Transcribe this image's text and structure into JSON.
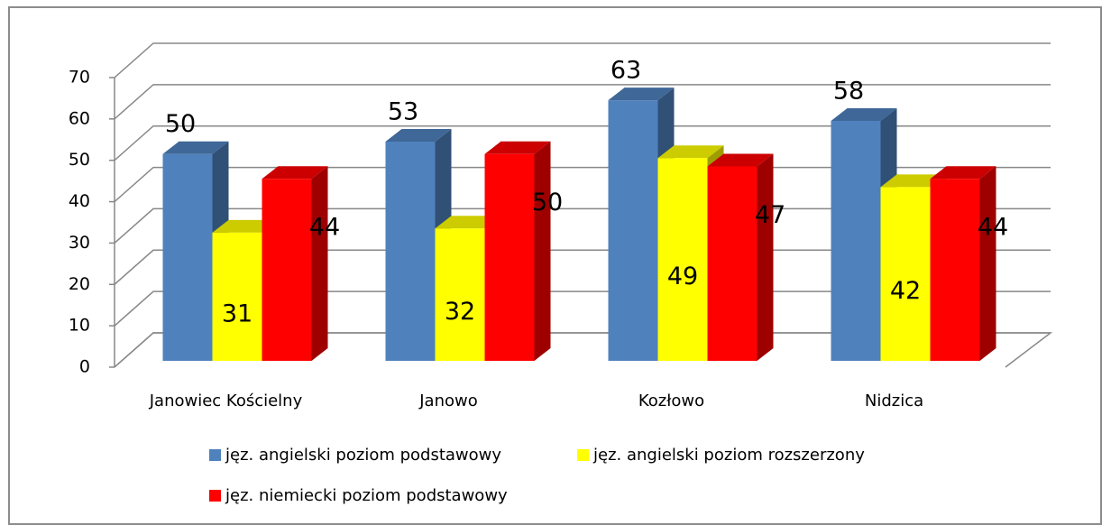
{
  "chart_data": {
    "type": "bar3d",
    "categories": [
      "Janowiec Kościelny",
      "Janowo",
      "Kozłowo",
      "Nidzica"
    ],
    "series": [
      {
        "name": "jęz. angielski poziom podstawowy",
        "color": "#4f81bd",
        "values": [
          50,
          53,
          63,
          58
        ]
      },
      {
        "name": "jęz. angielski poziom rozszerzony",
        "color": "#ffff00",
        "values": [
          31,
          32,
          49,
          42
        ]
      },
      {
        "name": "jęz. niemiecki poziom podstawowy",
        "color": "#ff0000",
        "values": [
          44,
          50,
          47,
          44
        ]
      }
    ],
    "ylim": [
      0,
      70
    ],
    "yticks": [
      0,
      10,
      20,
      30,
      40,
      50,
      60,
      70
    ],
    "grid": true
  }
}
